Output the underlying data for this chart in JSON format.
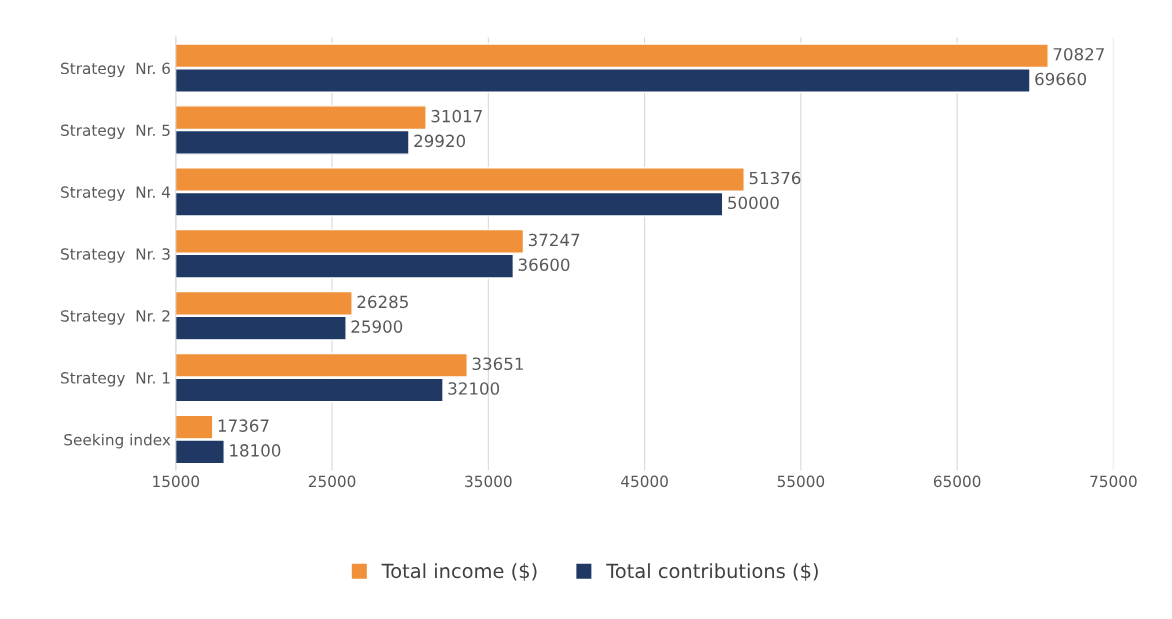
{
  "chart_data": {
    "type": "bar",
    "orientation": "horizontal",
    "categories": [
      "Strategy  Nr. 6",
      "Strategy  Nr. 5",
      "Strategy  Nr. 4",
      "Strategy  Nr. 3",
      "Strategy  Nr. 2",
      "Strategy  Nr. 1",
      "Seeking index"
    ],
    "series": [
      {
        "name": "Total income ($)",
        "color": "#f0913a",
        "values": [
          70827,
          31017,
          51376,
          37247,
          26285,
          33651,
          17367
        ]
      },
      {
        "name": "Total contributions ($)",
        "color": "#1f3864",
        "values": [
          69660,
          29920,
          50000,
          36600,
          25900,
          32100,
          18100
        ]
      }
    ],
    "xlim": [
      15000,
      75000
    ],
    "xticks": [
      15000,
      25000,
      35000,
      45000,
      55000,
      65000,
      75000
    ],
    "grid": "x",
    "legend": "bottom",
    "data_labels": true
  }
}
